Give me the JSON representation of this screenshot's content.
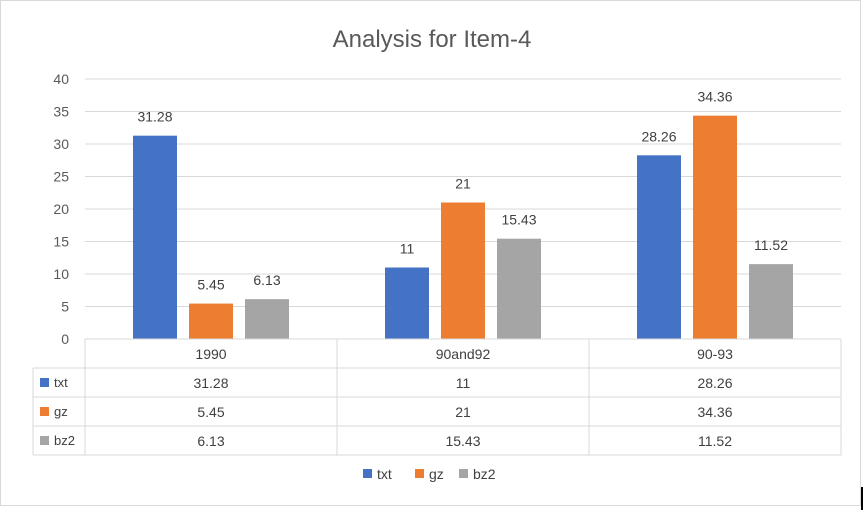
{
  "chart_data": {
    "type": "bar",
    "title": "Analysis for Item-4",
    "categories": [
      "1990",
      "90and92",
      "90-93"
    ],
    "series": [
      {
        "name": "txt",
        "color": "#4472c4",
        "values": [
          31.28,
          11,
          28.26
        ]
      },
      {
        "name": "gz",
        "color": "#ed7d31",
        "values": [
          5.45,
          21,
          34.36
        ]
      },
      {
        "name": "bz2",
        "color": "#a5a5a5",
        "values": [
          6.13,
          15.43,
          11.52
        ]
      }
    ],
    "ylim": [
      0,
      40
    ],
    "yticks": [
      0,
      5,
      10,
      15,
      20,
      25,
      30,
      35,
      40
    ],
    "grid": true,
    "data_table": true,
    "legend": "bottom"
  }
}
